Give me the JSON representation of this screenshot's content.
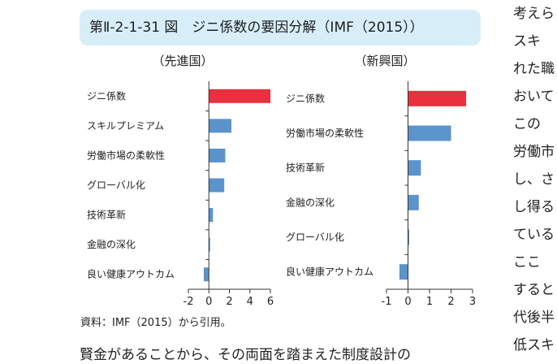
{
  "figure": {
    "title": "第Ⅱ-2-1-31 図　ジニ係数の要因分解（IMF（2015））",
    "source": "資料：IMF（2015）から引用。"
  },
  "side_text": {
    "right_lines": [
      "考えら",
      "スキ",
      "れた職",
      "おいて",
      "この",
      "労働市",
      "し、さ",
      "し得る",
      "ている",
      "ここ",
      "すると",
      "代後半",
      "低スキ"
    ],
    "bottom_line": "賢金があることから、その両面を踏まえた制度設計の"
  },
  "chart_data": [
    {
      "type": "bar",
      "orientation": "horizontal",
      "title": "（先進国）",
      "categories": [
        "ジニ係数",
        "スキルプレミアム",
        "労働市場の柔軟性",
        "グローバル化",
        "技術革新",
        "金融の深化",
        "良い健康アウトカム"
      ],
      "values": [
        6.0,
        2.2,
        1.6,
        1.5,
        0.4,
        0.1,
        -0.5
      ],
      "bar_colors": [
        "#e8303f",
        "#5b93cc",
        "#5b93cc",
        "#5b93cc",
        "#5b93cc",
        "#5b93cc",
        "#5b93cc"
      ],
      "xlim": [
        -2,
        6
      ],
      "xticks": [
        -2,
        0,
        2,
        4,
        6
      ],
      "xlabel": "",
      "ylabel": "",
      "grid": false
    },
    {
      "type": "bar",
      "orientation": "horizontal",
      "title": "（新興国）",
      "categories": [
        "ジニ係数",
        "労働市場の柔軟性",
        "技術革新",
        "金融の深化",
        "グローバル化",
        "良い健康アウトカム"
      ],
      "values": [
        2.7,
        2.0,
        0.6,
        0.5,
        0.05,
        -0.4
      ],
      "bar_colors": [
        "#e8303f",
        "#5b93cc",
        "#5b93cc",
        "#5b93cc",
        "#5b93cc",
        "#5b93cc"
      ],
      "xlim": [
        -1,
        3
      ],
      "xticks": [
        -1,
        0,
        1,
        2,
        3
      ],
      "xlabel": "",
      "ylabel": "",
      "grid": false
    }
  ]
}
